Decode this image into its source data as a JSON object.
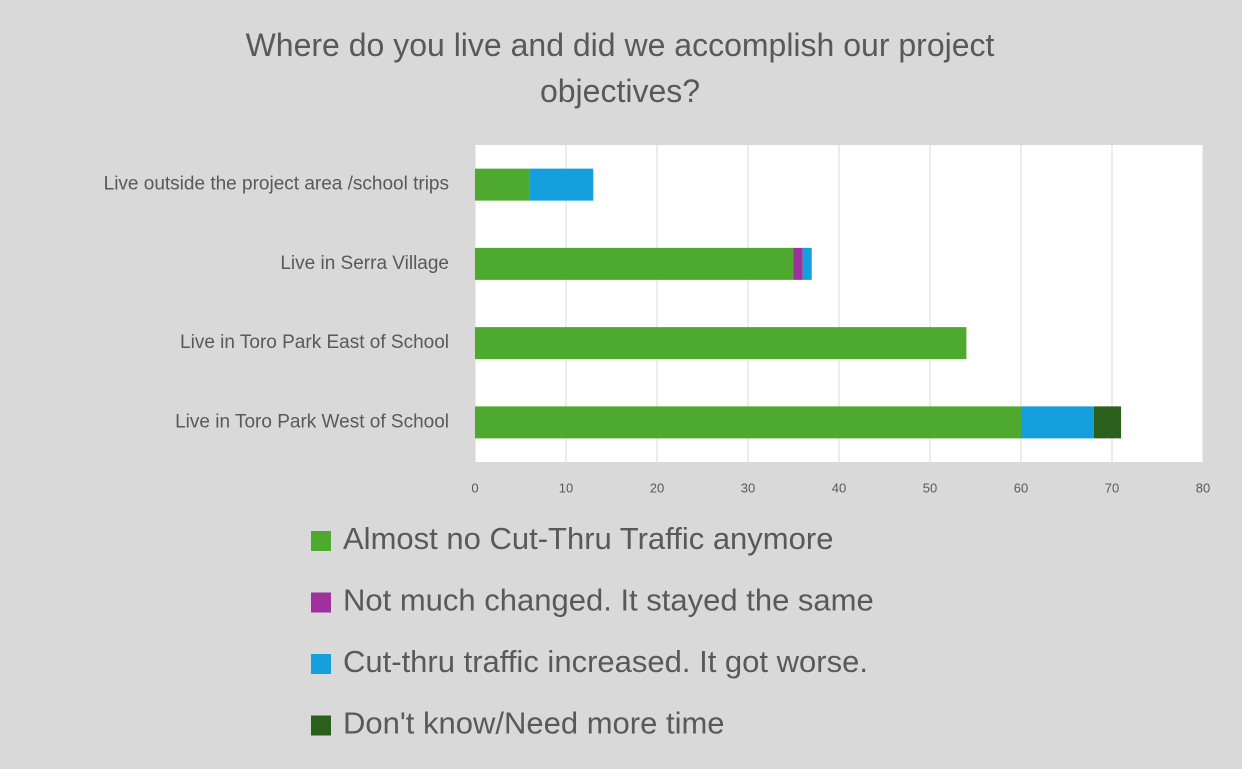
{
  "chart_data": {
    "type": "stacked_barh",
    "title": "Where do you live and did we accomplish our project objectives?",
    "categories": [
      "Live outside the project area /school trips",
      "Live in Serra Village",
      "Live in Toro Park East of School",
      "Live in Toro Park West of School"
    ],
    "series": [
      {
        "name": "Almost no Cut-Thru Traffic anymore",
        "color": "#4eaa2f",
        "values": [
          6,
          35,
          54,
          60
        ]
      },
      {
        "name": "Not much changed. It stayed the same",
        "color": "#a0319c",
        "values": [
          0,
          1,
          0,
          0
        ]
      },
      {
        "name": "Cut-thru traffic increased. It got worse.",
        "color": "#14a0dc",
        "values": [
          7,
          1,
          0,
          8
        ]
      },
      {
        "name": "Don't know/Need more time",
        "color": "#2b5f1c",
        "values": [
          0,
          0,
          0,
          3
        ]
      }
    ],
    "xlim": [
      0,
      80
    ],
    "xticks": [
      0,
      10,
      20,
      30,
      40,
      50,
      60,
      70,
      80
    ],
    "grid": true,
    "legend": "bottom"
  }
}
